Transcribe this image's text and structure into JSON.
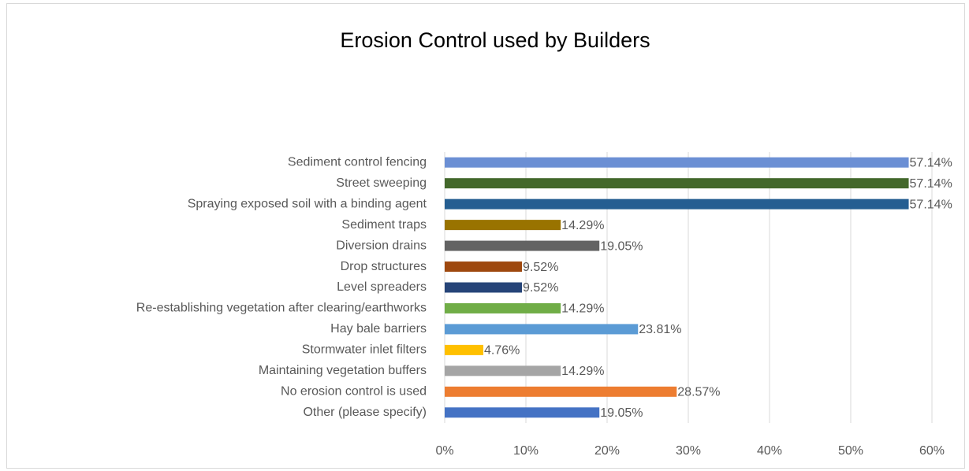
{
  "chart_data": {
    "type": "bar",
    "orientation": "horizontal",
    "title": "Erosion Control used by Builders",
    "categories": [
      "Sediment control fencing",
      "Street sweeping",
      "Spraying exposed soil with a binding agent",
      "Sediment traps",
      "Diversion drains",
      "Drop structures",
      "Level spreaders",
      "Re-establishing vegetation after clearing/earthworks",
      "Hay bale barriers",
      "Stormwater inlet filters",
      "Maintaining vegetation buffers",
      "No erosion control is used",
      "Other (please specify)"
    ],
    "values": [
      57.14,
      57.14,
      57.14,
      14.29,
      19.05,
      9.52,
      9.52,
      14.29,
      23.81,
      4.76,
      14.29,
      28.57,
      19.05
    ],
    "value_labels": [
      "57.14%",
      "57.14%",
      "57.14%",
      "14.29%",
      "19.05%",
      "9.52%",
      "9.52%",
      "14.29%",
      "23.81%",
      "4.76%",
      "14.29%",
      "28.57%",
      "19.05%"
    ],
    "colors": [
      "#6b8fd4",
      "#43682b",
      "#255e91",
      "#997300",
      "#636363",
      "#9e480e",
      "#264478",
      "#70ad47",
      "#5b9bd5",
      "#ffc000",
      "#a5a5a5",
      "#ed7d31",
      "#4472c4"
    ],
    "xlim": [
      0,
      60
    ],
    "xticks": [
      {
        "value": 0,
        "label": "0%"
      },
      {
        "value": 10,
        "label": "10%"
      },
      {
        "value": 20,
        "label": "20%"
      },
      {
        "value": 30,
        "label": "30%"
      },
      {
        "value": 40,
        "label": "40%"
      },
      {
        "value": 50,
        "label": "50%"
      },
      {
        "value": 60,
        "label": "60%"
      }
    ],
    "grid": true
  }
}
